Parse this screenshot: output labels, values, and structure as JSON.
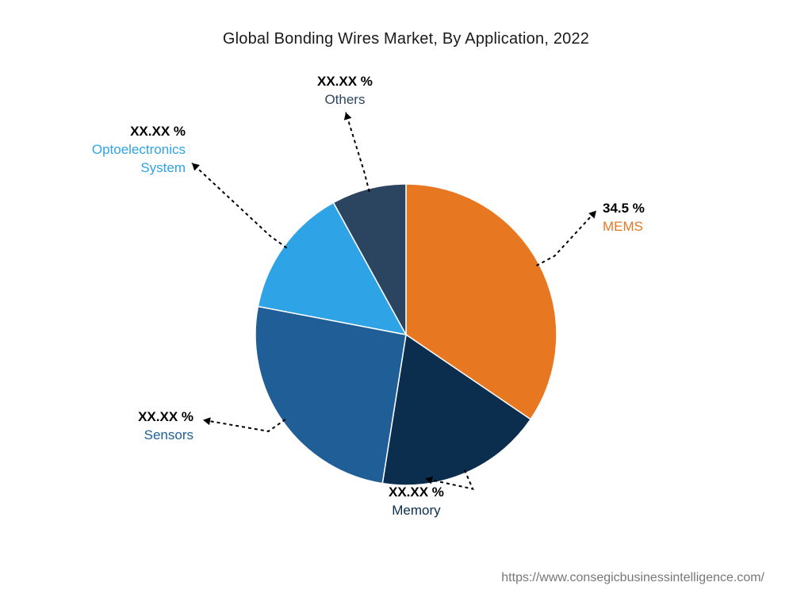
{
  "chart": {
    "type": "pie",
    "title": "Global Bonding Wires Market, By Application, 2022",
    "background_color": "#ffffff",
    "title_fontsize": 20,
    "title_color": "#1a1a1a",
    "label_fontsize": 17,
    "pct_fontweight": 700,
    "name_fontweight": 500,
    "radius": 190,
    "start_angle_deg": 0,
    "slices": [
      {
        "name": "MEMS",
        "value": 34.5,
        "pct_label": "34.5 %",
        "color": "#e87722",
        "label_color": "#e87722"
      },
      {
        "name": "Memory",
        "value": 18.0,
        "pct_label": "XX.XX %",
        "color": "#0b2e4f",
        "label_color": "#0b2e4f"
      },
      {
        "name": "Sensors",
        "value": 25.5,
        "pct_label": "XX.XX %",
        "color": "#1f5e96",
        "label_color": "#1f5e96"
      },
      {
        "name": "Optoelectronics System",
        "value": 14.0,
        "pct_label": "XX.XX %",
        "color": "#2ea3e6",
        "label_color": "#2ea3e6"
      },
      {
        "name": "Others",
        "value": 8.0,
        "pct_label": "XX.XX %",
        "color": "#2b4560",
        "label_color": "#2b4560"
      }
    ],
    "leader_dash": "4 4",
    "leader_color": "#000000",
    "leader_width": 2
  },
  "source_url": "https://www.consegicbusinessintelligence.com/",
  "source_color": "#777777",
  "source_fontsize": 16
}
